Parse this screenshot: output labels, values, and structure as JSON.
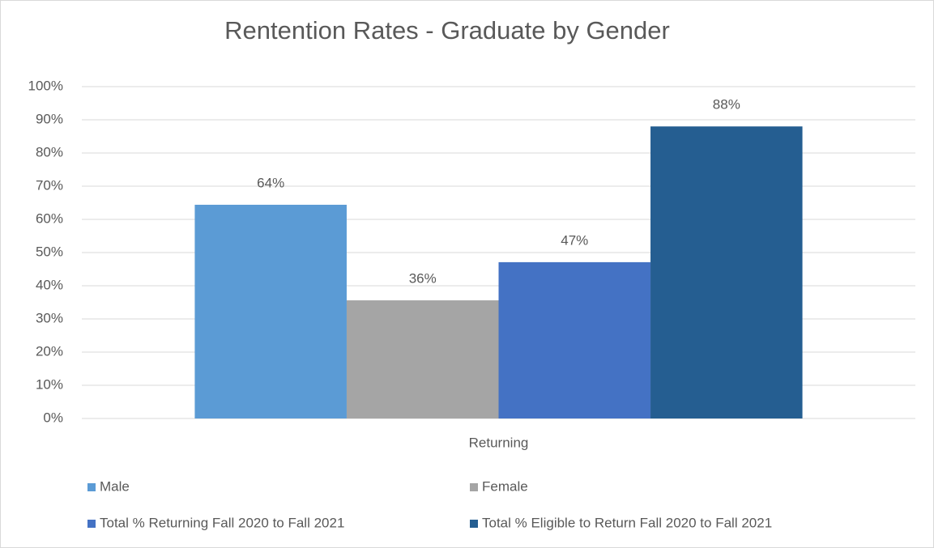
{
  "chart_data": {
    "type": "bar",
    "title": "Rentention Rates - Graduate by Gender",
    "categories": [
      "Returning"
    ],
    "series": [
      {
        "name": "Male",
        "color": "#5b9bd5",
        "values": [
          64.4
        ],
        "value_labels": [
          "64%"
        ]
      },
      {
        "name": "Female",
        "color": "#a5a5a5",
        "values": [
          35.6
        ],
        "value_labels": [
          "36%"
        ]
      },
      {
        "name": "Total % Returning Fall 2020 to Fall 2021",
        "color": "#4472c4",
        "values": [
          47.1
        ],
        "value_labels": [
          "47%"
        ]
      },
      {
        "name": "Total % Eligible to Return Fall 2020 to Fall 2021",
        "color": "#255e91",
        "values": [
          88.0
        ],
        "value_labels": [
          "88%"
        ]
      }
    ],
    "ylim": [
      0,
      100
    ],
    "yticks": [
      {
        "value": 0,
        "label": "0%"
      },
      {
        "value": 10,
        "label": "10%"
      },
      {
        "value": 20,
        "label": "20%"
      },
      {
        "value": 30,
        "label": "30%"
      },
      {
        "value": 40,
        "label": "40%"
      },
      {
        "value": 50,
        "label": "50%"
      },
      {
        "value": 60,
        "label": "60%"
      },
      {
        "value": 70,
        "label": "70%"
      },
      {
        "value": 80,
        "label": "80%"
      },
      {
        "value": 90,
        "label": "90%"
      },
      {
        "value": 100,
        "label": "100%"
      }
    ],
    "grid": true,
    "legend": "bottom"
  }
}
